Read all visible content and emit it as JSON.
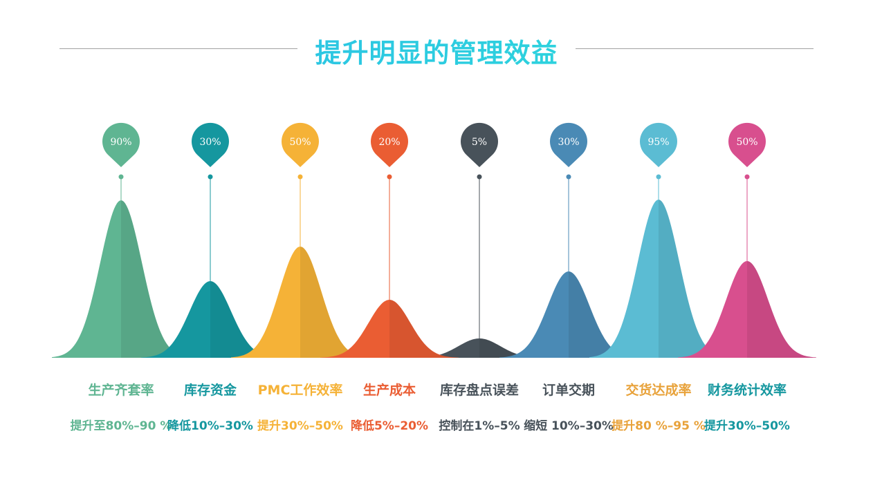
{
  "title": "提升明显的管理效益",
  "items": [
    {
      "pin": "90%",
      "label": "生产齐套率",
      "detail": "提升至80%–90 %",
      "color": "#5fb592",
      "label_color": "#5fb592"
    },
    {
      "pin": "30%",
      "label": "库存资金",
      "detail": "降低10%–30%",
      "color": "#15979f",
      "label_color": "#15979f"
    },
    {
      "pin": "50%",
      "label": "PMC工作效率",
      "detail": "提升30%–50%",
      "color": "#f5b237",
      "label_color": "#f5b237"
    },
    {
      "pin": "20%",
      "label": "生产成本",
      "detail": "降低5%–20%",
      "color": "#ea5d33",
      "label_color": "#ea5d33"
    },
    {
      "pin": "5%",
      "label": "库存盘点误差",
      "detail": "控制在1%–5%",
      "color": "#48525a",
      "label_color": "#48525a"
    },
    {
      "pin": "30%",
      "label": "订单交期",
      "detail": "缩短 10%–30%",
      "color": "#4a8ab5",
      "label_color": "#48525a"
    },
    {
      "pin": "95%",
      "label": "交货达成率",
      "detail": "提升80 %–95 %",
      "color": "#5bbcd3",
      "label_color": "#e8a23a"
    },
    {
      "pin": "50%",
      "label": "财务统计效率",
      "detail": "提升30%–50%",
      "color": "#d84f8e",
      "label_color": "#15979f"
    }
  ]
}
